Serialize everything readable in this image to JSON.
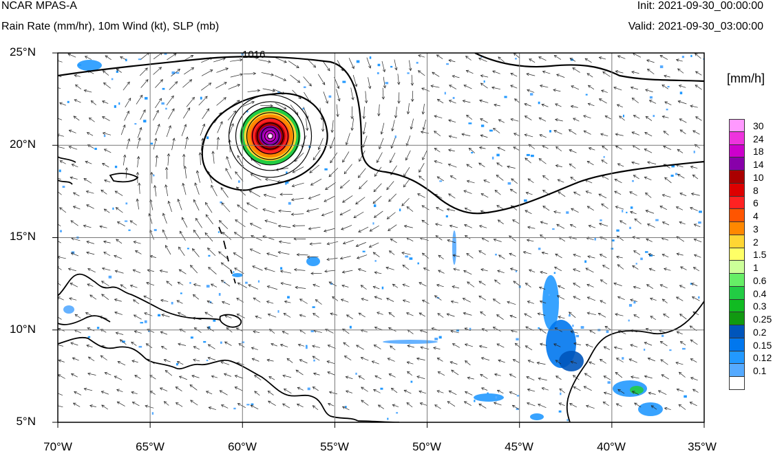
{
  "header": {
    "title": "NCAR MPAS-A",
    "subtitle": "Rain Rate (mm/hr), 10m Wind (kt), SLP (mb)",
    "init": "Init: 2021-09-30_00:00:00",
    "valid": "Valid: 2021-09-30_03:00:00"
  },
  "map": {
    "lat_labels": [
      "25°N",
      "20°N",
      "15°N",
      "10°N",
      "5°N"
    ],
    "lon_labels": [
      "70°W",
      "65°W",
      "60°W",
      "55°W",
      "50°W",
      "45°W",
      "40°W",
      "35°W"
    ],
    "isobar_label": "1016",
    "colors": {
      "coast": "#000000",
      "grid": "#777777",
      "isobar": "#000000"
    }
  },
  "legend": {
    "units": "[mm/h]",
    "levels": [
      "30",
      "24",
      "18",
      "14",
      "10",
      "8",
      "6",
      "4",
      "3",
      "2",
      "1.5",
      "1",
      "0.6",
      "0.4",
      "0.3",
      "0.25",
      "0.2",
      "0.15",
      "0.12",
      "0.1"
    ],
    "colors": [
      "#ff99ff",
      "#ee33dd",
      "#cc00cc",
      "#8800aa",
      "#aa0000",
      "#dd0000",
      "#ff2222",
      "#ff5500",
      "#ff8800",
      "#ffd633",
      "#ffff66",
      "#ccff99",
      "#66ee66",
      "#22cc44",
      "#11bb22",
      "#119911",
      "#0055bb",
      "#0077ee",
      "#2299ff",
      "#55aaff",
      "#ffffff"
    ]
  }
}
